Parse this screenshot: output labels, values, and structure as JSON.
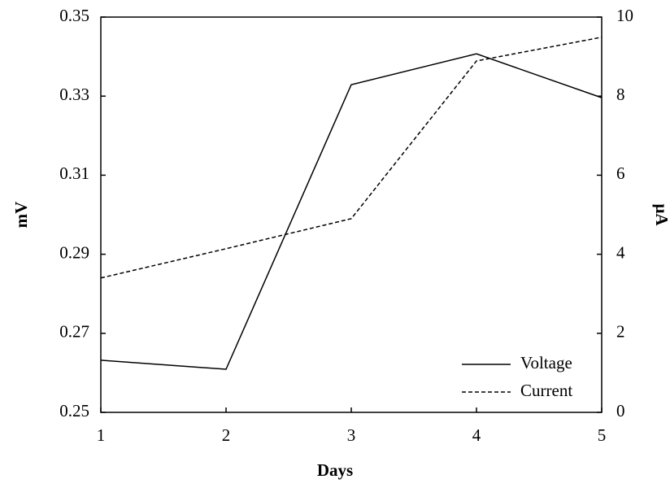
{
  "chart_data": {
    "type": "line",
    "x_label": "Days",
    "y_label": "mV",
    "y2_label": "μA",
    "x": [
      1,
      2,
      3,
      4,
      5
    ],
    "xlim": [
      1,
      5
    ],
    "xticks": [
      1,
      2,
      3,
      4,
      5
    ],
    "ylim": [
      0.25,
      0.35
    ],
    "yticks": [
      0.25,
      0.27,
      0.29,
      0.31,
      0.33,
      0.35
    ],
    "y2lim": [
      0,
      10
    ],
    "y2ticks": [
      0,
      2,
      4,
      6,
      8,
      10
    ],
    "legend": "lower right",
    "series": [
      {
        "name": "Voltage",
        "color": "#000000",
        "linestyle": "solid",
        "values": [
          0.2632,
          0.2609,
          0.3329,
          0.3407,
          0.3296
        ]
      },
      {
        "name": "Current",
        "color": "#000000",
        "linestyle": "dashed",
        "axis": "y2",
        "values": [
          3.4,
          4.14,
          4.9,
          8.89,
          9.49
        ]
      }
    ]
  }
}
